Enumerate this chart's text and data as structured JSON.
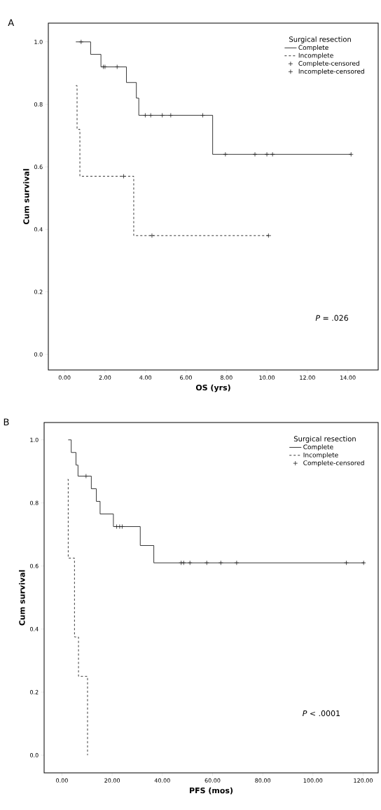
{
  "chart_data": [
    {
      "type": "step",
      "title": "A",
      "xlabel": "OS (yrs)",
      "ylabel": "Cum survival",
      "legend_title": "Surgical resection",
      "legend": "top right",
      "xlim": [
        -0.8,
        15.5
      ],
      "ylim": [
        -0.05,
        1.06
      ],
      "xticks": [
        {
          "value": 0,
          "label": "0.00"
        },
        {
          "value": 2,
          "label": "2.00"
        },
        {
          "value": 4,
          "label": "4.00"
        },
        {
          "value": 6,
          "label": "6.00"
        },
        {
          "value": 8,
          "label": "8.00"
        },
        {
          "value": 10,
          "label": "10.00"
        },
        {
          "value": 12,
          "label": "12.00"
        },
        {
          "value": 14,
          "label": "14.00"
        }
      ],
      "yticks": [
        {
          "value": 0,
          "label": "0.0"
        },
        {
          "value": 0.2,
          "label": "0.2"
        },
        {
          "value": 0.4,
          "label": "0.4"
        },
        {
          "value": 0.6,
          "label": "0.6"
        },
        {
          "value": 0.8,
          "label": "0.8"
        },
        {
          "value": 1,
          "label": "1.0"
        }
      ],
      "annotations": [
        "*P* = .026"
      ],
      "series": [
        {
          "name": "Complete",
          "color": "#222222",
          "line_style": "solid",
          "x": [
            0.56,
            1.29,
            1.8,
            3.06,
            3.55,
            3.67,
            7.32,
            14.16
          ],
          "values": [
            1.0,
            0.96,
            0.92,
            0.87,
            0.82,
            0.765,
            0.64,
            0.64
          ]
        },
        {
          "name": "Incomplete",
          "color": "#222222",
          "line_style": "dashed",
          "x": [
            0.56,
            0.62,
            0.76,
            3.42,
            10.2
          ],
          "values": [
            0.86,
            0.72,
            0.57,
            0.38,
            0.38
          ]
        },
        {
          "name": "Complete-censored",
          "type": "scatter",
          "marker": "cross",
          "color": "#222222",
          "x": [
            0.82,
            1.92,
            2.0,
            2.6,
            3.99,
            4.26,
            4.83,
            5.25,
            6.83,
            7.95,
            9.41,
            10.0,
            10.28,
            14.16
          ],
          "values": [
            1.0,
            0.92,
            0.92,
            0.92,
            0.765,
            0.765,
            0.765,
            0.765,
            0.765,
            0.64,
            0.64,
            0.64,
            0.64,
            0.64
          ]
        },
        {
          "name": "Incomplete-censored",
          "type": "scatter",
          "marker": "cross",
          "color": "#222222",
          "x": [
            2.92,
            4.32,
            10.08
          ],
          "values": [
            0.57,
            0.38,
            0.38
          ]
        }
      ]
    },
    {
      "type": "step",
      "title": "B",
      "xlabel": "PFS (mos)",
      "ylabel": "Cum survival",
      "legend_title": "Surgical resection",
      "legend": "top right",
      "xlim": [
        -7.1,
        126
      ],
      "ylim": [
        -0.056,
        1.055
      ],
      "xticks": [
        {
          "value": 0,
          "label": "0.00"
        },
        {
          "value": 20,
          "label": "20.00"
        },
        {
          "value": 40,
          "label": "40.00"
        },
        {
          "value": 60,
          "label": "60.00"
        },
        {
          "value": 80,
          "label": "80.00"
        },
        {
          "value": 100,
          "label": "100.00"
        },
        {
          "value": 120,
          "label": "120.00"
        }
      ],
      "yticks": [
        {
          "value": 0,
          "label": "0.0"
        },
        {
          "value": 0.2,
          "label": "0.2"
        },
        {
          "value": 0.4,
          "label": "0.4"
        },
        {
          "value": 0.6,
          "label": "0.6"
        },
        {
          "value": 0.8,
          "label": "0.8"
        },
        {
          "value": 1,
          "label": "1.0"
        }
      ],
      "annotations": [
        "*P* < .0001"
      ],
      "series": [
        {
          "name": "Complete",
          "color": "#222222",
          "line_style": "solid",
          "x": [
            2.5,
            3.7,
            5.6,
            6.4,
            11.7,
            13.7,
            15.2,
            20.5,
            31.2,
            36.6,
            120.5
          ],
          "values": [
            1.0,
            0.96,
            0.92,
            0.885,
            0.845,
            0.805,
            0.765,
            0.725,
            0.665,
            0.61,
            0.61
          ]
        },
        {
          "name": "Incomplete",
          "color": "#222222",
          "line_style": "dashed",
          "x": [
            2.3,
            2.5,
            5.0,
            6.6,
            10.2
          ],
          "values": [
            0.875,
            0.625,
            0.375,
            0.25,
            0.0
          ]
        },
        {
          "name": "Complete-censored",
          "type": "scatter",
          "marker": "cross",
          "color": "#222222",
          "x": [
            9.6,
            21.8,
            23.0,
            24.0,
            47.5,
            48.5,
            51.0,
            57.7,
            63.3,
            69.6,
            113.3,
            120.2
          ],
          "values": [
            0.885,
            0.725,
            0.725,
            0.725,
            0.61,
            0.61,
            0.61,
            0.61,
            0.61,
            0.61,
            0.61,
            0.61
          ]
        }
      ]
    }
  ]
}
